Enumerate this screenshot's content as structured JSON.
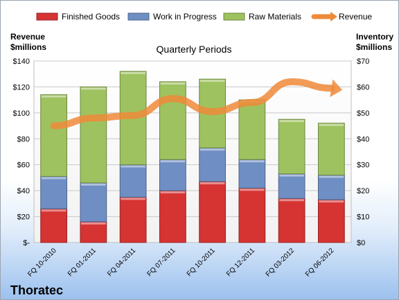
{
  "chart_data": {
    "type": "bar",
    "company": "Thoratec",
    "plot_title": "Quarterly Periods",
    "left_axis_title": [
      "Revenue",
      "$millions"
    ],
    "right_axis_title": [
      "Inventory",
      "$millions"
    ],
    "categories": [
      "FQ 10-2010",
      "FQ 01-2011",
      "FQ 04-2011",
      "FQ 07-2011",
      "FQ 10-2011",
      "FQ 12-2011",
      "FQ 03-2012",
      "FQ 06-2012"
    ],
    "left_axis": {
      "min": 0,
      "max": 140,
      "step": 20,
      "labels": [
        "$-",
        "$20",
        "$40",
        "$60",
        "$80",
        "$100",
        "$120",
        "$140"
      ]
    },
    "right_axis": {
      "min": 0,
      "max": 70,
      "step": 10,
      "labels": [
        "$0",
        "$10",
        "$20",
        "$30",
        "$40",
        "$50",
        "$60",
        "$70"
      ]
    },
    "stacked_bars_axis": "right",
    "series": [
      {
        "name": "Finished Goods",
        "axis": "right",
        "color": "#d63333",
        "values": [
          13,
          8,
          17.5,
          20,
          23.5,
          21,
          17,
          16.5
        ]
      },
      {
        "name": "Work in Progress",
        "axis": "right",
        "color": "#6f8fc4",
        "values": [
          12.5,
          15,
          12.5,
          12,
          13,
          11,
          9.5,
          9.5
        ]
      },
      {
        "name": "Raw Materials",
        "axis": "right",
        "color": "#9ec25f",
        "values": [
          31.5,
          37,
          36,
          30,
          26.5,
          23,
          21,
          20
        ]
      },
      {
        "name": "Revenue",
        "axis": "left",
        "type": "line",
        "color": "#ee8a3a",
        "values": [
          90,
          96,
          98,
          111,
          101,
          108,
          124,
          119
        ]
      }
    ],
    "legend_position": "top",
    "grid": true
  }
}
